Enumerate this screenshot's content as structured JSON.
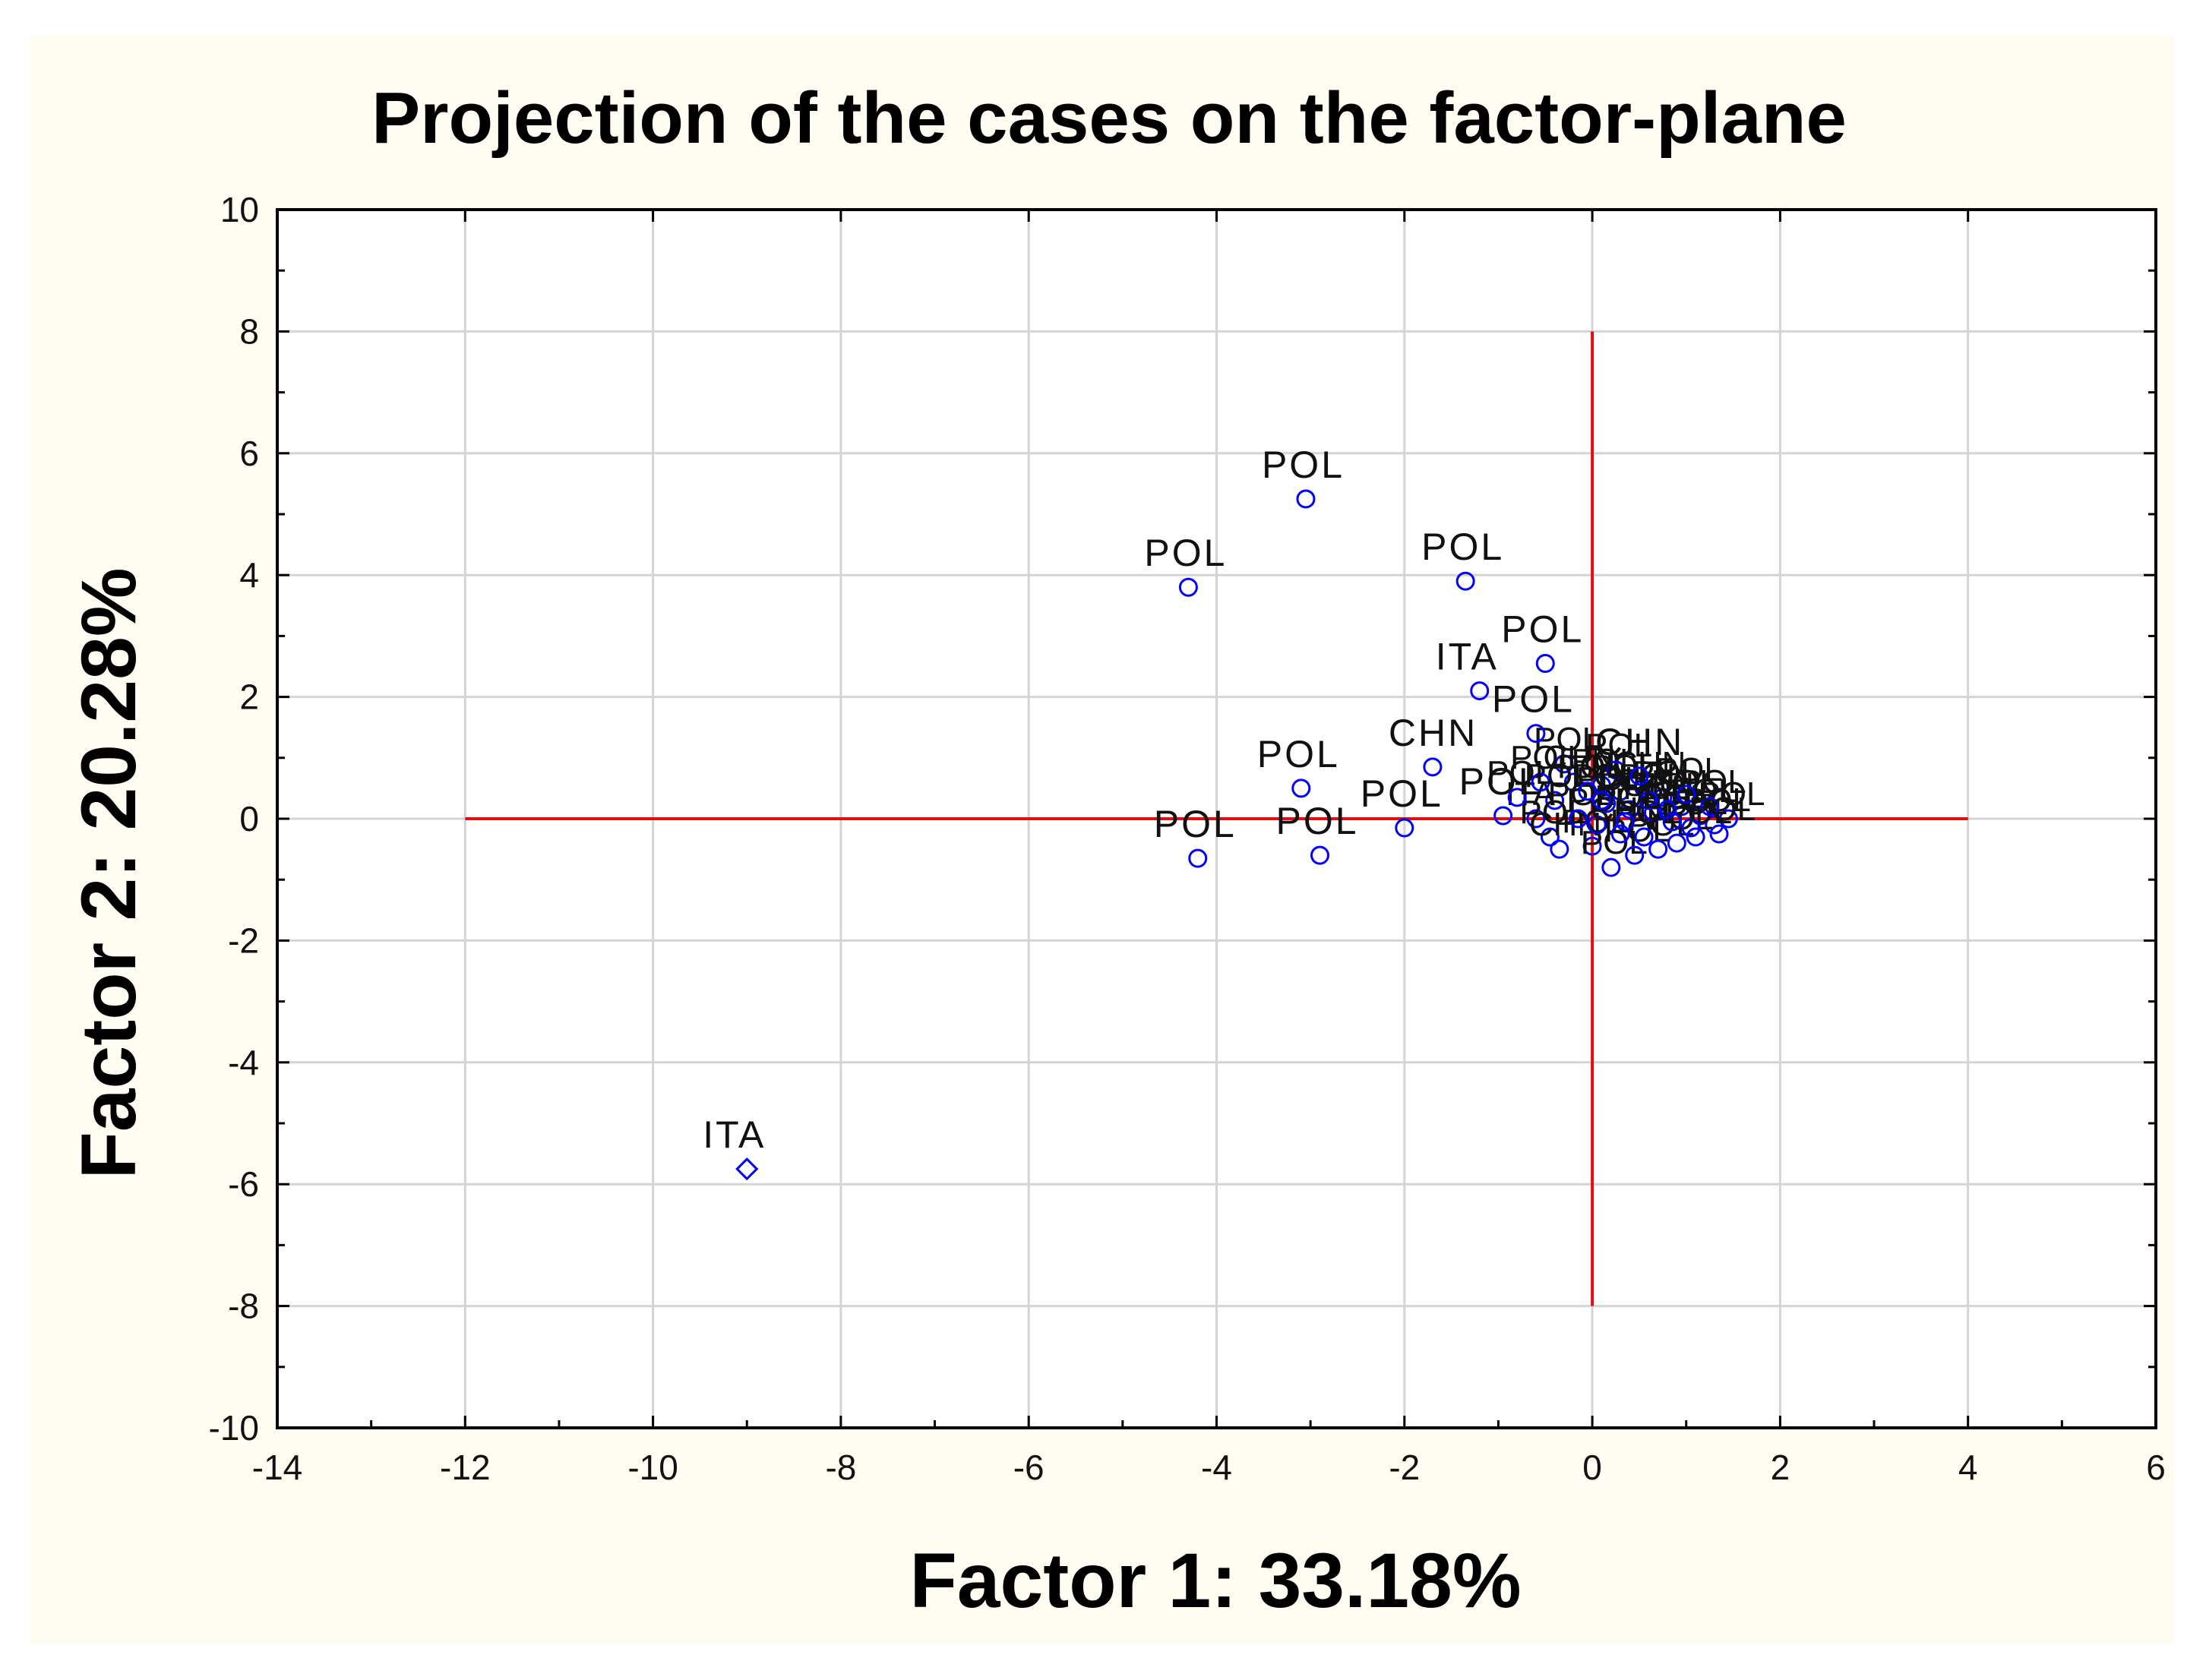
{
  "chart_data": {
    "type": "scatter",
    "title": "Projection of the cases on the factor-plane",
    "xlabel": "Factor 1: 33.18%",
    "ylabel": "Factor 2: 20.28%",
    "xlim": [
      -14,
      6
    ],
    "ylim": [
      -10,
      10
    ],
    "x_ticks": [
      -14,
      -12,
      -10,
      -8,
      -6,
      -4,
      -2,
      0,
      2,
      4,
      6
    ],
    "y_ticks": [
      -10,
      -8,
      -6,
      -4,
      -2,
      0,
      2,
      4,
      6,
      8,
      10
    ],
    "x_tick_labels": [
      "-14",
      "-12",
      "-10",
      "-8",
      "-6",
      "-4",
      "-2",
      "0",
      "2",
      "4",
      "6"
    ],
    "y_tick_labels": [
      "-10",
      "-8",
      "-6",
      "-4",
      "-2",
      "0",
      "2",
      "4",
      "6",
      "8",
      "10"
    ],
    "grid": true,
    "reference_lines": {
      "horizontal": {
        "y": 0,
        "x_from": -12,
        "x_to": 4
      },
      "vertical": {
        "x": 0,
        "y_from": -8,
        "y_to": 8
      },
      "color": "#e01010"
    },
    "marker_color": "#0000ff",
    "points": [
      {
        "label": "POL",
        "x": -3.05,
        "y": 5.25
      },
      {
        "label": "POL",
        "x": -4.3,
        "y": 3.8
      },
      {
        "label": "POL",
        "x": -1.35,
        "y": 3.9
      },
      {
        "label": "POL",
        "x": -0.5,
        "y": 2.55
      },
      {
        "label": "ITA",
        "x": -1.2,
        "y": 2.1
      },
      {
        "label": "POL",
        "x": -0.6,
        "y": 1.4
      },
      {
        "label": "CHN",
        "x": -1.7,
        "y": 0.85
      },
      {
        "label": "POL",
        "x": -3.1,
        "y": 0.5
      },
      {
        "label": "POL",
        "x": -2.0,
        "y": -0.15
      },
      {
        "label": "POL",
        "x": -4.2,
        "y": -0.65
      },
      {
        "label": "POL",
        "x": -2.9,
        "y": -0.6
      },
      {
        "label": "POL",
        "x": -0.95,
        "y": 0.05
      },
      {
        "label": "CHN",
        "x": 0.5,
        "y": 0.7
      },
      {
        "label": "ITA",
        "x": -9.0,
        "y": -5.75
      }
    ],
    "cluster_labels": [
      "POL",
      "CHN",
      "POL",
      "POL",
      "CHN",
      "POL",
      "POL",
      "POL",
      "POL",
      "POL",
      "POL",
      "ITA",
      "POL",
      "CHN",
      "POL",
      "POL",
      "POL",
      "POL",
      "POL",
      "POL",
      "POL",
      "POL",
      "POL",
      "POL",
      "POL",
      "POL",
      "POL",
      "CHN",
      "POL",
      "POL",
      "POL",
      "POL",
      "POL",
      "POL",
      "POL",
      "POL",
      "POL",
      "POL",
      "POL",
      "POL"
    ],
    "cluster_points": [
      [
        -0.3,
        0.9
      ],
      [
        -0.2,
        0.6
      ],
      [
        0.1,
        0.55
      ],
      [
        0.3,
        0.45
      ],
      [
        0.55,
        0.5
      ],
      [
        0.75,
        0.35
      ],
      [
        0.95,
        0.2
      ],
      [
        1.15,
        0.05
      ],
      [
        1.3,
        -0.1
      ],
      [
        1.45,
        0.0
      ],
      [
        -0.4,
        0.3
      ],
      [
        -0.6,
        0.0
      ],
      [
        -0.45,
        -0.3
      ],
      [
        -0.35,
        -0.5
      ],
      [
        0.0,
        -0.45
      ],
      [
        0.2,
        -0.8
      ],
      [
        0.45,
        -0.6
      ],
      [
        0.7,
        -0.5
      ],
      [
        0.9,
        -0.4
      ],
      [
        1.1,
        -0.3
      ],
      [
        0.15,
        0.25
      ],
      [
        0.4,
        0.15
      ],
      [
        0.65,
        0.1
      ],
      [
        0.85,
        -0.05
      ],
      [
        1.05,
        -0.15
      ],
      [
        -0.15,
        0.0
      ],
      [
        0.05,
        -0.1
      ],
      [
        0.3,
        -0.25
      ],
      [
        0.55,
        -0.3
      ],
      [
        0.8,
        0.15
      ],
      [
        1.25,
        0.2
      ],
      [
        1.0,
        0.4
      ],
      [
        -0.55,
        0.6
      ],
      [
        -0.8,
        0.35
      ],
      [
        0.25,
        0.8
      ],
      [
        0.6,
        0.3
      ],
      [
        0.35,
        -0.05
      ],
      [
        0.1,
        0.3
      ],
      [
        -0.05,
        0.45
      ],
      [
        1.35,
        -0.25
      ]
    ]
  }
}
